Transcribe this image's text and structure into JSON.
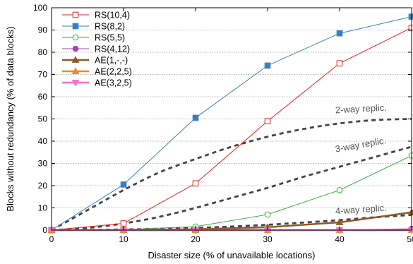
{
  "chart_data": {
    "type": "line",
    "xlabel": "Disaster size (% of unavailable locations)",
    "ylabel": "Blocks without redundancy (% of data blocks)",
    "xlim": [
      0,
      50
    ],
    "ylim": [
      0,
      100
    ],
    "xticks": [
      0,
      10,
      20,
      30,
      40,
      50
    ],
    "yticks": [
      0,
      10,
      20,
      30,
      40,
      50,
      60,
      70,
      80,
      90,
      100
    ],
    "grid": "horizontal dotted",
    "legend_position": "top-left",
    "series": [
      {
        "name": "RS(10,4)",
        "color": "#e0201b",
        "marker": "square-open",
        "x": [
          0,
          10,
          20,
          30,
          40,
          50
        ],
        "y": [
          0,
          3,
          21,
          49,
          75,
          91
        ]
      },
      {
        "name": "RS(8,2)",
        "color": "#3b7ec0",
        "marker": "square-filled",
        "x": [
          0,
          10,
          20,
          30,
          40,
          50
        ],
        "y": [
          0,
          20.5,
          50.5,
          74,
          88.5,
          96
        ]
      },
      {
        "name": "RS(5,5)",
        "color": "#3aa63a",
        "marker": "circle-open",
        "x": [
          0,
          10,
          20,
          30,
          40,
          50
        ],
        "y": [
          0,
          0.2,
          1.6,
          7,
          18,
          33.5
        ]
      },
      {
        "name": "RS(4,12)",
        "color": "#9b4aa8",
        "marker": "circle-filled",
        "x": [
          0,
          10,
          20,
          30,
          40,
          50
        ],
        "y": [
          0,
          0,
          0,
          0,
          0.1,
          0.6
        ]
      },
      {
        "name": "AE(1,-,-)",
        "color": "#8c5a2a",
        "marker": "triangle-up-filled",
        "linewidth": 2.5,
        "x": [
          0,
          10,
          20,
          30,
          40,
          50
        ],
        "y": [
          0,
          0.1,
          0.4,
          1.3,
          3.5,
          8
        ]
      },
      {
        "name": "AE(2,2,5)",
        "color": "#f08a1c",
        "marker": "triangle-up-filled",
        "linewidth": 2.5,
        "x": [
          0,
          10,
          20,
          30,
          40,
          50
        ],
        "y": [
          0,
          0,
          0,
          0,
          0,
          0
        ]
      },
      {
        "name": "AE(3,2,5)",
        "color": "#f070c8",
        "marker": "triangle-down-filled",
        "linewidth": 2.5,
        "x": [
          0,
          10,
          20,
          30,
          40,
          50
        ],
        "y": [
          0,
          0,
          0,
          0,
          0,
          0
        ]
      }
    ],
    "replication_curves": [
      {
        "label": "2-way replic.",
        "color": "#444444",
        "x": [
          0,
          5,
          10,
          15,
          20,
          25,
          30,
          35,
          40,
          45,
          50
        ],
        "y": [
          0,
          9,
          18,
          26,
          32,
          37.5,
          42,
          45.5,
          48,
          49.5,
          50
        ]
      },
      {
        "label": "3-way replic.",
        "color": "#444444",
        "x": [
          0,
          5,
          10,
          15,
          20,
          25,
          30,
          35,
          40,
          45,
          50
        ],
        "y": [
          0,
          1,
          3,
          6,
          10,
          14.5,
          19,
          24,
          28.5,
          33,
          37.5
        ]
      },
      {
        "label": "4-way replic.",
        "color": "#444444",
        "x": [
          0,
          5,
          10,
          15,
          20,
          25,
          30,
          35,
          40,
          45,
          50
        ],
        "y": [
          0,
          0.1,
          0.3,
          0.6,
          1,
          1.6,
          2.4,
          3.4,
          4.5,
          5.8,
          6.8
        ]
      }
    ]
  }
}
